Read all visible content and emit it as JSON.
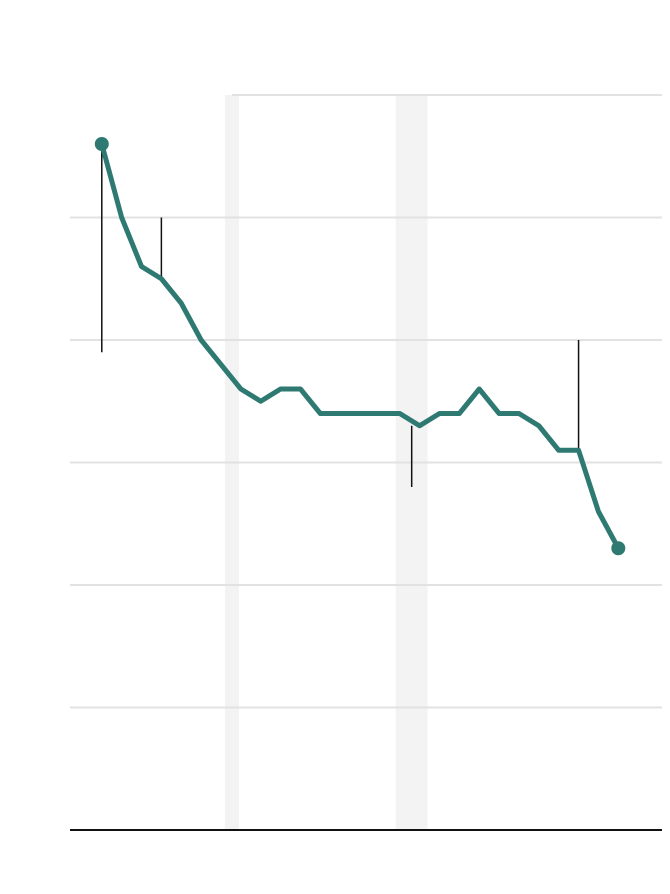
{
  "chart_data": {
    "type": "line",
    "title": "",
    "xlabel": "",
    "ylabel": "",
    "xlim": [
      -1.6,
      28.2
    ],
    "ylim": [
      0,
      6
    ],
    "grid": true,
    "shaded_bands": [
      {
        "x_start": 6.2,
        "x_end": 6.9
      },
      {
        "x_start": 14.8,
        "x_end": 16.4
      }
    ],
    "series": [
      {
        "values": [
          5.6,
          5.0,
          4.6,
          4.5,
          4.3,
          4.0,
          3.8,
          3.6,
          3.5,
          3.6,
          3.6,
          3.4,
          3.4,
          3.4,
          3.4,
          3.4,
          3.3,
          3.4,
          3.4,
          3.6,
          3.4,
          3.4,
          3.3,
          3.1,
          3.1,
          2.6,
          2.3
        ]
      }
    ],
    "x": [
      0,
      1,
      2,
      3,
      4,
      5,
      6,
      7,
      8,
      9,
      10,
      11,
      12,
      13,
      14,
      15,
      16,
      17,
      18,
      19,
      20,
      21,
      22,
      23,
      24,
      25,
      26
    ],
    "annotations": [
      {
        "x": 0,
        "y_from": 5.6,
        "y_to": 3.9
      },
      {
        "x": 3,
        "y_from": 4.5,
        "y_to": 5.0
      },
      {
        "x": 15.6,
        "y_from": 3.3,
        "y_to": 2.8
      },
      {
        "x": 24,
        "y_from": 3.1,
        "y_to": 4.0
      }
    ],
    "colors": {
      "line": "#2e7a72",
      "grid": "#e2e2e2",
      "band": "#f3f3f3",
      "axis": "#111111",
      "annotation": "#111111"
    }
  }
}
